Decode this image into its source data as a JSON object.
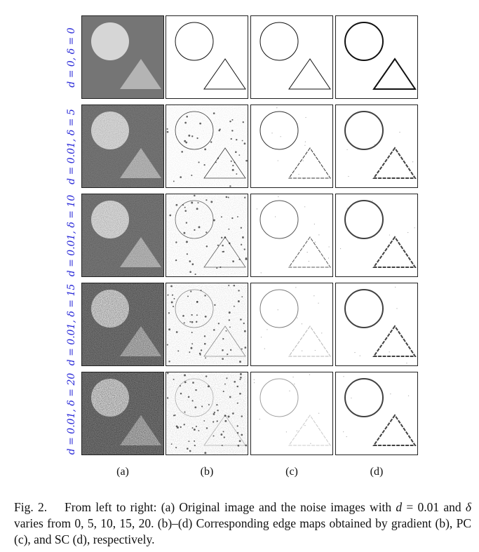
{
  "rows": [
    {
      "label": "d = 0, δ = 0",
      "noise": 0
    },
    {
      "label": "d = 0.01, δ = 5",
      "noise": 5
    },
    {
      "label": "d = 0.01, δ = 10",
      "noise": 10
    },
    {
      "label": "d = 0.01, δ = 15",
      "noise": 15
    },
    {
      "label": "d = 0.01, δ = 20",
      "noise": 20
    }
  ],
  "columns": [
    {
      "label": "(a)",
      "kind": "original"
    },
    {
      "label": "(b)",
      "kind": "gradient"
    },
    {
      "label": "(c)",
      "kind": "pc"
    },
    {
      "label": "(d)",
      "kind": "sc"
    }
  ],
  "caption": {
    "fig_label": "Fig. 2.",
    "part1": "From left to right: (a) Original image and the noise images with ",
    "var_d": "d",
    "part2": " = 0.01 and ",
    "var_delta": "δ",
    "part3": " varies from 0, 5, 10, 15, 20. (b)–(d) Corresponding edge maps obtained by gradient (b), PC (c), and SC (d), respectively."
  },
  "colors": {
    "row_label": "#2a2ad8",
    "background_dark": "#757575",
    "shape_light": "#d6d6d6",
    "triangle_light": "#b4b4b4"
  }
}
